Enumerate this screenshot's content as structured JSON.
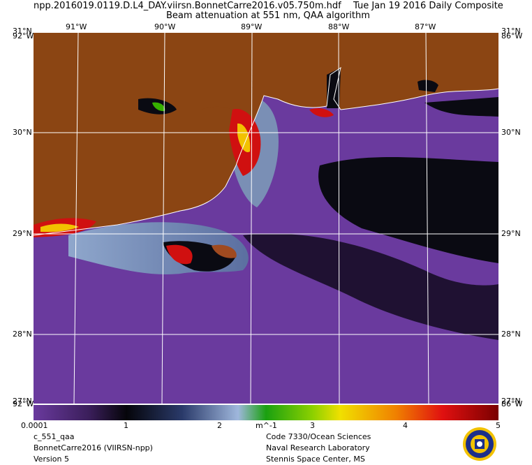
{
  "header": {
    "filename": "npp.2016019.0119.D.L4_DAY.viirsn.BonnetCarre2016.v05.750m.hdf",
    "date": "Tue Jan 19 2016 Daily Composite",
    "product": "Beam attenuation at 551 nm, QAA algorithm"
  },
  "map": {
    "lon_ticks": [
      "91°W",
      "90°W",
      "89°W",
      "88°W",
      "87°W"
    ],
    "lat_ticks": [
      "30°N",
      "29°N",
      "28°N"
    ],
    "corner_top_left": "31°N",
    "corner_top_left_2": "92°W",
    "corner_top_right": "31°N",
    "corner_top_right_2": "86°W",
    "corner_bottom_left": "27°N",
    "corner_bottom_left_2": "92°W",
    "corner_bottom_right": "27°N",
    "corner_bottom_right_2": "86°W",
    "colors": {
      "land": "#8b4513",
      "water_low": "#6a3a9e",
      "water_dark": "#050505",
      "plume": "#7a8fb5",
      "grid": "#ffffff"
    }
  },
  "colorbar": {
    "labels": [
      "0.0001",
      "1",
      "2",
      "3",
      "4",
      "5"
    ],
    "units": "m^-1"
  },
  "footer": {
    "left": [
      "c_551_qaa",
      "BonnetCarre2016 (VIIRSN-npp)",
      "Version 5"
    ],
    "right": [
      "Code 7330/Ocean Sciences",
      "Naval Research Laboratory",
      "Stennis Space Center, MS"
    ]
  },
  "logo": {
    "name": "navy-seal"
  }
}
